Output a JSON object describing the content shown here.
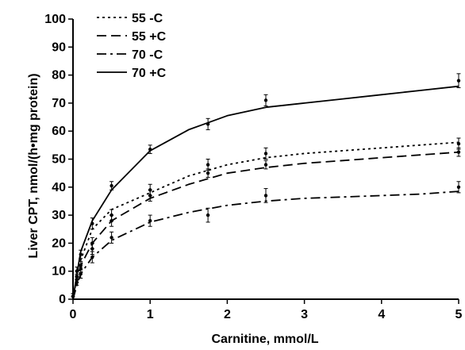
{
  "chart_data": {
    "type": "line",
    "title": "",
    "xlabel": "Carnitine, mmol/L",
    "ylabel": "Liver CPT, nmol/(h•mg protein)",
    "xlim": [
      0,
      5
    ],
    "ylim": [
      0,
      100
    ],
    "x_ticks": [
      "0",
      "1",
      "2",
      "3",
      "4",
      "5"
    ],
    "y_ticks": [
      "0",
      "10",
      "20",
      "30",
      "40",
      "50",
      "60",
      "70",
      "80",
      "90",
      "100"
    ],
    "grid": false,
    "legend_position": "top-left",
    "series": [
      {
        "name": "55 -C",
        "dash": "dotted",
        "curve": {
          "x": [
            0,
            0.05,
            0.1,
            0.25,
            0.5,
            1,
            1.5,
            2,
            2.5,
            3,
            3.5,
            4,
            4.5,
            5
          ],
          "y": [
            0,
            8,
            14,
            25,
            32,
            38,
            44,
            48,
            50.5,
            52,
            53,
            54,
            55,
            56
          ]
        },
        "points": [
          {
            "x": 0,
            "y": 1,
            "err": 1
          },
          {
            "x": 0.05,
            "y": 8,
            "err": 1
          },
          {
            "x": 0.1,
            "y": 12,
            "err": 1.5
          },
          {
            "x": 0.25,
            "y": 20,
            "err": 2
          },
          {
            "x": 0.5,
            "y": 30,
            "err": 2
          },
          {
            "x": 1,
            "y": 39,
            "err": 2
          },
          {
            "x": 1.75,
            "y": 48,
            "err": 2
          },
          {
            "x": 2.5,
            "y": 52,
            "err": 2
          },
          {
            "x": 5,
            "y": 55.5,
            "err": 2
          }
        ]
      },
      {
        "name": "55 +C",
        "dash": "dashed",
        "curve": {
          "x": [
            0,
            0.05,
            0.1,
            0.25,
            0.5,
            1,
            1.5,
            2,
            2.5,
            3,
            3.5,
            4,
            4.5,
            5
          ],
          "y": [
            0,
            7,
            12,
            20,
            28,
            36,
            41,
            45,
            47,
            48.5,
            49.5,
            50.5,
            51.5,
            52.5
          ]
        },
        "points": [
          {
            "x": 0,
            "y": 1,
            "err": 1
          },
          {
            "x": 0.05,
            "y": 7,
            "err": 1
          },
          {
            "x": 0.1,
            "y": 11,
            "err": 1.5
          },
          {
            "x": 0.25,
            "y": 18,
            "err": 2
          },
          {
            "x": 0.5,
            "y": 28,
            "err": 2
          },
          {
            "x": 1,
            "y": 37,
            "err": 2
          },
          {
            "x": 1.75,
            "y": 45,
            "err": 1.5
          },
          {
            "x": 2.5,
            "y": 48,
            "err": 1.5
          },
          {
            "x": 5,
            "y": 52.5,
            "err": 1.5
          }
        ]
      },
      {
        "name": "70 -C",
        "dash": "dash-dot",
        "curve": {
          "x": [
            0,
            0.05,
            0.1,
            0.25,
            0.5,
            1,
            1.5,
            2,
            2.5,
            3,
            3.5,
            4,
            4.5,
            5
          ],
          "y": [
            0,
            5,
            9,
            15,
            21,
            27.5,
            31,
            33.5,
            35,
            36,
            36.5,
            37,
            37.5,
            38.5
          ]
        },
        "points": [
          {
            "x": 0,
            "y": 1,
            "err": 1
          },
          {
            "x": 0.05,
            "y": 6,
            "err": 1
          },
          {
            "x": 0.1,
            "y": 9,
            "err": 1.5
          },
          {
            "x": 0.25,
            "y": 15,
            "err": 2
          },
          {
            "x": 0.5,
            "y": 22,
            "err": 2
          },
          {
            "x": 1,
            "y": 28,
            "err": 2
          },
          {
            "x": 1.75,
            "y": 30,
            "err": 2.5
          },
          {
            "x": 2.5,
            "y": 37,
            "err": 2.5
          },
          {
            "x": 5,
            "y": 40,
            "err": 2
          }
        ]
      },
      {
        "name": "70 +C",
        "dash": "solid",
        "curve": {
          "x": [
            0,
            0.05,
            0.1,
            0.25,
            0.5,
            1,
            1.5,
            2,
            2.5,
            3,
            3.5,
            4,
            4.5,
            5
          ],
          "y": [
            0,
            9,
            17,
            28,
            39,
            53,
            60.5,
            65.5,
            68.5,
            70,
            71.5,
            73,
            74.5,
            76
          ]
        },
        "points": [
          {
            "x": 0,
            "y": 1,
            "err": 1
          },
          {
            "x": 0.05,
            "y": 10,
            "err": 1.5
          },
          {
            "x": 0.1,
            "y": 16,
            "err": 1.5
          },
          {
            "x": 0.25,
            "y": 27,
            "err": 2
          },
          {
            "x": 0.5,
            "y": 40.5,
            "err": 1.5
          },
          {
            "x": 1,
            "y": 53.5,
            "err": 1.5
          },
          {
            "x": 1.75,
            "y": 62.5,
            "err": 2
          },
          {
            "x": 2.5,
            "y": 71,
            "err": 2
          },
          {
            "x": 5,
            "y": 78,
            "err": 2.5
          }
        ]
      }
    ]
  }
}
